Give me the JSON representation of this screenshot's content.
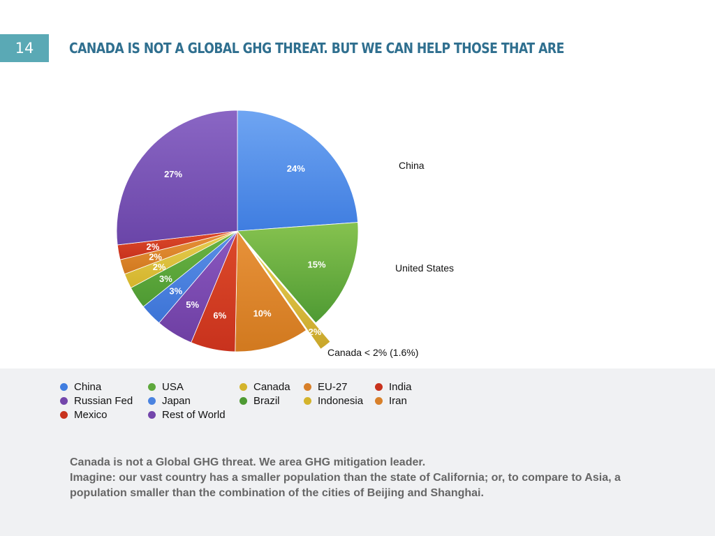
{
  "slide": {
    "number": "14",
    "title": "CANADA IS NOT A GLOBAL GHG THREAT. BUT WE CAN HELP THOSE THAT ARE"
  },
  "chart_data": {
    "type": "pie",
    "slices": [
      {
        "legend": "China",
        "value": 24,
        "label": "24%",
        "color": "#3f7de0",
        "highlight": "#6fa5f2"
      },
      {
        "legend": "USA",
        "value": 15,
        "label": "15%",
        "color": "#4e9a33",
        "highlight": "#86c24f"
      },
      {
        "legend": "Canada",
        "value": 1.6,
        "label": "2%",
        "color": "#c9a62a",
        "highlight": "#e6ce52",
        "exploded": true
      },
      {
        "legend": "EU-27",
        "value": 10,
        "label": "10%",
        "color": "#d1791f",
        "highlight": "#e8923a"
      },
      {
        "legend": "India",
        "value": 6,
        "label": "6%",
        "color": "#c8321d",
        "highlight": "#dc4a2a"
      },
      {
        "legend": "Russian Fed",
        "value": 5,
        "label": "5%",
        "color": "#6e3fa3",
        "highlight": "#8a58c0"
      },
      {
        "legend": "Japan",
        "value": 3,
        "label": "3%",
        "color": "#3d74d6",
        "highlight": "#5a8ee6"
      },
      {
        "legend": "Brazil",
        "value": 3,
        "label": "3%",
        "color": "#4e9a33",
        "highlight": "#6bb443"
      },
      {
        "legend": "Indonesia",
        "value": 2,
        "label": "2%",
        "color": "#d4b42c",
        "highlight": "#e6ce52"
      },
      {
        "legend": "Iran",
        "value": 2,
        "label": "2%",
        "color": "#d1791f",
        "highlight": "#e8923a"
      },
      {
        "legend": "Mexico",
        "value": 2,
        "label": "2%",
        "color": "#c8321d",
        "highlight": "#dc4a2a"
      },
      {
        "legend": "Rest of World",
        "value": 27,
        "label": "27%",
        "color": "#6a45a8",
        "highlight": "#8a66c4"
      }
    ],
    "callouts": {
      "china": "China",
      "united_states": "United States",
      "canada": "Canada < 2% (1.6%)"
    }
  },
  "legend": [
    {
      "label": "China",
      "color": "#3f7de0"
    },
    {
      "label": "USA",
      "color": "#5ea83c"
    },
    {
      "label": "Canada",
      "color": "#d4b42c"
    },
    {
      "label": "EU-27",
      "color": "#d8802a"
    },
    {
      "label": "India",
      "color": "#c8321d"
    },
    {
      "label": "Russian Fed",
      "color": "#7346ab"
    },
    {
      "label": "Japan",
      "color": "#4a83e0"
    },
    {
      "label": "Brazil",
      "color": "#4e9a33"
    },
    {
      "label": "Indonesia",
      "color": "#d4b42c"
    },
    {
      "label": "Iran",
      "color": "#d8802a"
    },
    {
      "label": "Mexico",
      "color": "#c8321d"
    },
    {
      "label": "Rest of World",
      "color": "#7346ab"
    }
  ],
  "footer": {
    "line1": "Canada is not a Global GHG threat. We area GHG mitigation leader.",
    "line2": "Imagine: our vast country has a smaller population than the state of California; or, to compare to Asia, a population smaller than the combination of the cities of Beijing and Shanghai."
  }
}
